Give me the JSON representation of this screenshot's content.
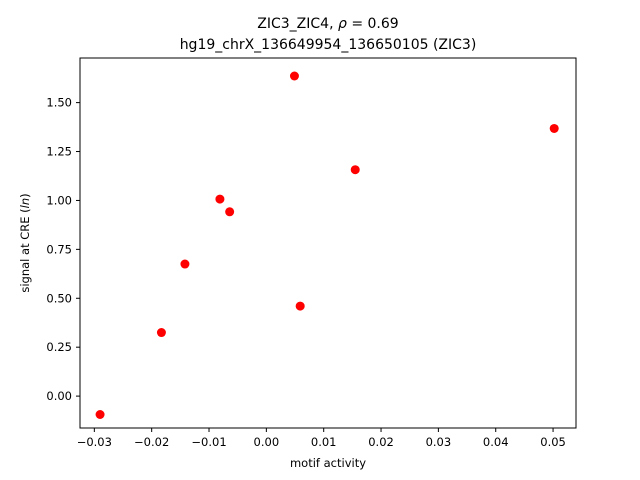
{
  "chart_data": {
    "type": "scatter",
    "title_line1_prefix": "ZIC3_ZIC4, ",
    "title_line1_rho": "ρ",
    "title_line1_suffix": " = 0.69",
    "title_line2": "hg19_chrX_136649954_136650105 (ZIC3)",
    "xlabel": "motif activity",
    "ylabel_prefix": "signal at CRE (",
    "ylabel_italic": "ln",
    "ylabel_suffix": ")",
    "xlim": [
      -0.0325,
      0.054
    ],
    "ylim": [
      -0.163,
      1.728
    ],
    "xticks": [
      -0.03,
      -0.02,
      -0.01,
      0.0,
      0.01,
      0.02,
      0.03,
      0.04,
      0.05
    ],
    "xtick_labels": [
      "−0.03",
      "−0.02",
      "−0.01",
      "0.00",
      "0.01",
      "0.02",
      "0.03",
      "0.04",
      "0.05"
    ],
    "yticks": [
      0.0,
      0.25,
      0.5,
      0.75,
      1.0,
      1.25,
      1.5
    ],
    "ytick_labels": [
      "0.00",
      "0.25",
      "0.50",
      "0.75",
      "1.00",
      "1.25",
      "1.50"
    ],
    "marker_color": "#ff0000",
    "points": [
      {
        "x": -0.029,
        "y": -0.094
      },
      {
        "x": -0.0183,
        "y": 0.325
      },
      {
        "x": -0.0142,
        "y": 0.675
      },
      {
        "x": -0.0081,
        "y": 1.007
      },
      {
        "x": -0.0064,
        "y": 0.942
      },
      {
        "x": 0.0049,
        "y": 1.636
      },
      {
        "x": 0.0059,
        "y": 0.46
      },
      {
        "x": 0.0155,
        "y": 1.157
      },
      {
        "x": 0.0502,
        "y": 1.368
      }
    ]
  }
}
